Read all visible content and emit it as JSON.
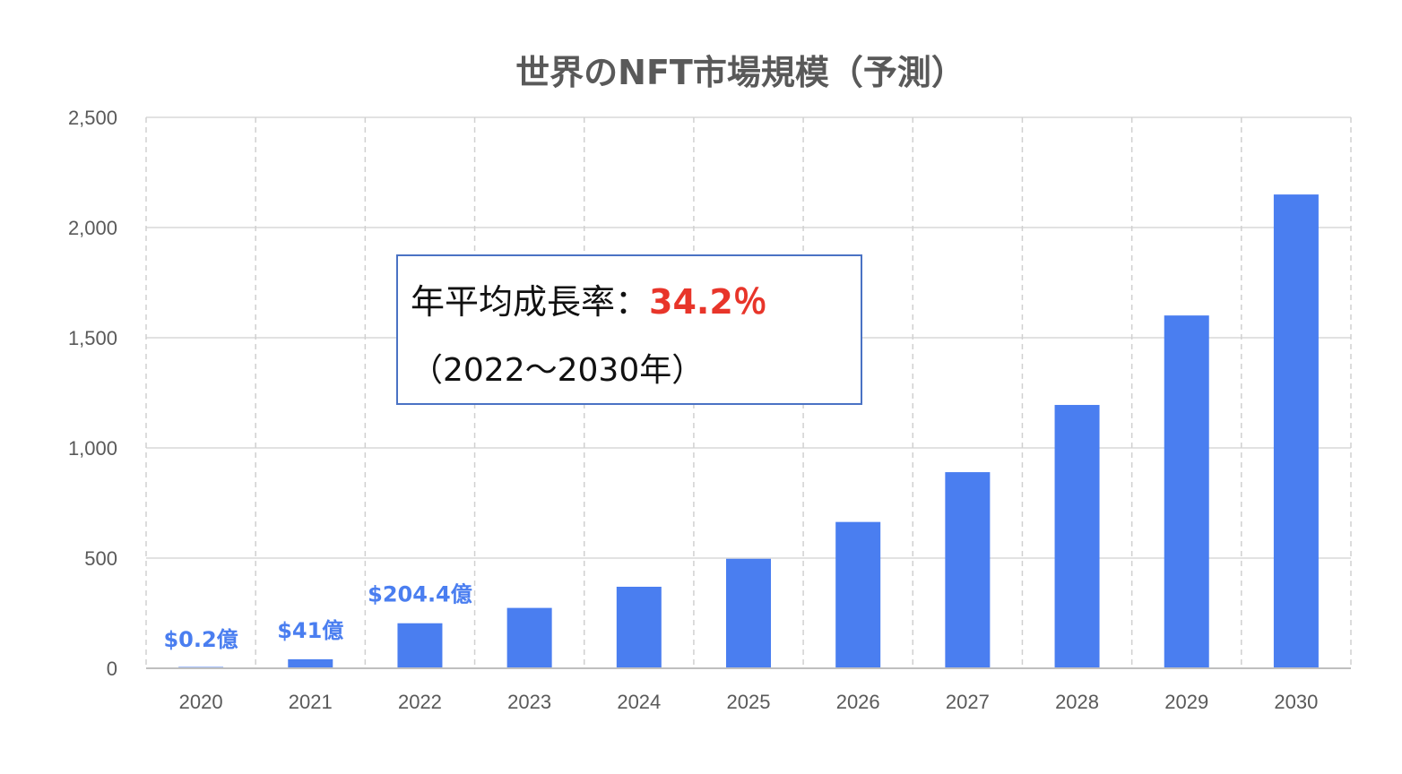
{
  "chart_data": {
    "type": "bar",
    "title": "世界のNFT市場規模（予測）",
    "xlabel": "",
    "ylabel": "",
    "categories": [
      "2020",
      "2021",
      "2022",
      "2023",
      "2024",
      "2025",
      "2026",
      "2027",
      "2028",
      "2029",
      "2030"
    ],
    "values": [
      0.2,
      41,
      204.4,
      274,
      370,
      497,
      664,
      890,
      1195,
      1601,
      2150
    ],
    "ylim": [
      0,
      2500
    ],
    "yticks": [
      0,
      500,
      1000,
      1500,
      2000,
      2500
    ],
    "ytick_labels": [
      "0",
      "500",
      "1,000",
      "1,500",
      "2,000",
      "2,500"
    ],
    "grid": {
      "horizontal": "solid",
      "vertical": "dashed"
    },
    "bar_color": "#4a7ef0",
    "data_labels": [
      {
        "category": "2020",
        "text": "$0.2億"
      },
      {
        "category": "2021",
        "text": "$41億"
      },
      {
        "category": "2022",
        "text": "$204.4億"
      }
    ],
    "annotation": {
      "line1_prefix": "年平均成長率：",
      "line1_rate": "34.2％",
      "line2": "（2022〜2030年）",
      "rate_color": "#e8352a",
      "border_color": "#4a72c4"
    }
  }
}
